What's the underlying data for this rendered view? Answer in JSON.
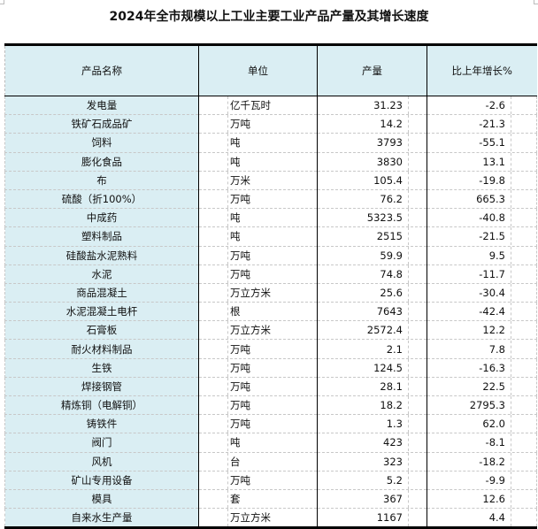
{
  "title": "2024年全市规模以上工业主要工业产品产量及其增长速度",
  "headers": [
    "产品名称",
    "单位",
    "产量",
    "比上年增长%"
  ],
  "rows": [
    {
      "name": "发电量",
      "unit": "亿千瓦时",
      "output": "31.23",
      "growth": "-2.6"
    },
    {
      "name": "铁矿石成品矿",
      "unit": "万吨",
      "output": "14.2",
      "growth": "-21.3"
    },
    {
      "name": "饲料",
      "unit": "吨",
      "output": "3793",
      "growth": "-55.1"
    },
    {
      "name": "膨化食品",
      "unit": "吨",
      "output": "3830",
      "growth": "13.1"
    },
    {
      "name": "布",
      "unit": "万米",
      "output": "105.4",
      "growth": "-19.8"
    },
    {
      "name": "硫酸（折100%）",
      "unit": "万吨",
      "output": "76.2",
      "growth": "665.3"
    },
    {
      "name": "中成药",
      "unit": "吨",
      "output": "5323.5",
      "growth": "-40.8"
    },
    {
      "name": "塑料制品",
      "unit": "吨",
      "output": "2515",
      "growth": "-21.5"
    },
    {
      "name": "硅酸盐水泥熟料",
      "unit": "万吨",
      "output": "59.9",
      "growth": "9.5"
    },
    {
      "name": "水泥",
      "unit": "万吨",
      "output": "74.8",
      "growth": "-11.7"
    },
    {
      "name": "商品混凝土",
      "unit": "万立方米",
      "output": "25.6",
      "growth": "-30.4"
    },
    {
      "name": "水泥混凝土电杆",
      "unit": "根",
      "output": "7643",
      "growth": "-42.4"
    },
    {
      "name": "石膏板",
      "unit": "万立方米",
      "output": "2572.4",
      "growth": "12.2"
    },
    {
      "name": "耐火材料制品",
      "unit": "万吨",
      "output": "2.1",
      "growth": "7.8"
    },
    {
      "name": "生铁",
      "unit": "万吨",
      "output": "124.5",
      "growth": "-16.3"
    },
    {
      "name": "焊接钢管",
      "unit": "万吨",
      "output": "28.1",
      "growth": "22.5"
    },
    {
      "name": "精炼铜（电解铜）",
      "unit": "万吨",
      "output": "18.2",
      "growth": "2795.3"
    },
    {
      "name": "铸铁件",
      "unit": "万吨",
      "output": "1.3",
      "growth": "62.0"
    },
    {
      "name": "阀门",
      "unit": "吨",
      "output": "423",
      "growth": "-8.1"
    },
    {
      "name": "风机",
      "unit": "台",
      "output": "323",
      "growth": "-18.2"
    },
    {
      "name": "矿山专用设备",
      "unit": "万吨",
      "output": "5.2",
      "growth": "-9.9"
    },
    {
      "name": "模具",
      "unit": "套",
      "output": "367",
      "growth": "12.6"
    },
    {
      "name": "自来水生产量",
      "unit": "万立方米",
      "output": "1167",
      "growth": "4.4"
    }
  ]
}
